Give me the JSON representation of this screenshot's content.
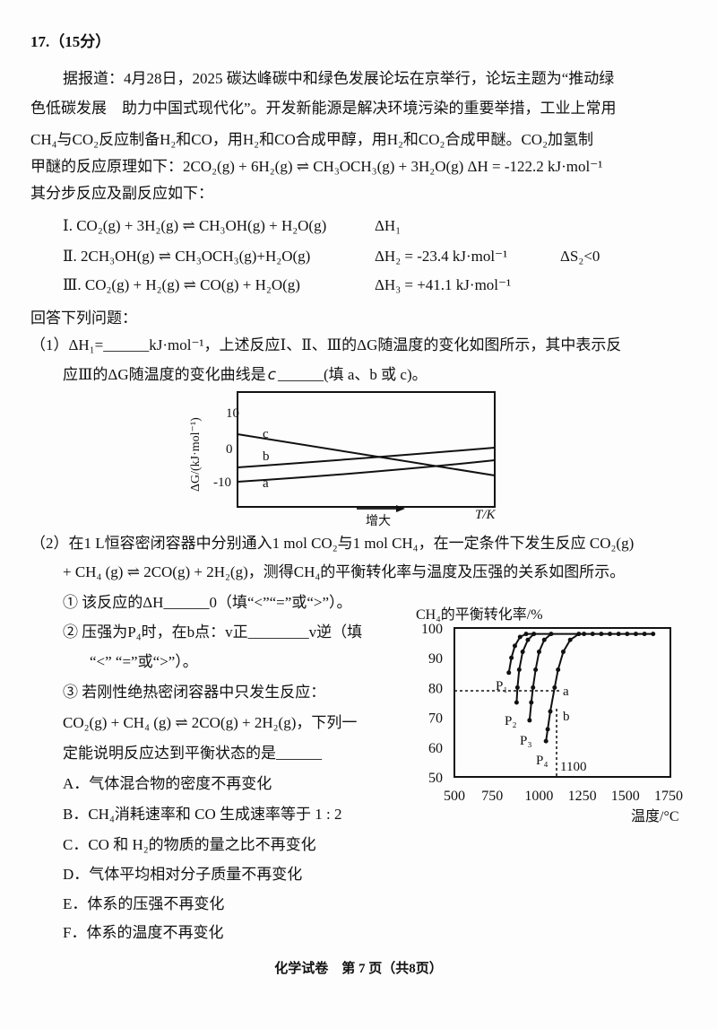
{
  "question": {
    "number": "17.（15分）",
    "intro": [
      "据报道：4月28日，2025 碳达峰碳中和绿色发展论坛在京举行，论坛主题为“推动绿",
      "色低碳发展　助力中国式现代化”。开发新能源是解决环境污染的重要举措，工业上常用",
      "CH₄与CO₂反应制备H₂和CO，用H₂和CO合成甲醇，用H₂和CO₂合成甲醚。CO₂加氢制",
      "甲醚的反应原理如下：2CO₂(g) + 6H₂(g) ⇌ CH₃OCH₃(g) + 3H₂O(g)  ΔH = -122.2 kJ·mol⁻¹",
      "其分步反应及副反应如下："
    ],
    "reactions": [
      {
        "eq": "Ⅰ. CO₂(g) + 3H₂(g) ⇌ CH₃OH(g) + H₂O(g)",
        "dh": "ΔH₁",
        "ds": ""
      },
      {
        "eq": "Ⅱ. 2CH₃OH(g) ⇌ CH₃OCH₃(g)+H₂O(g)",
        "dh": "ΔH₂ = -23.4 kJ·mol⁻¹",
        "ds": "ΔS₂<0"
      },
      {
        "eq": "Ⅲ. CO₂(g) + H₂(g) ⇌ CO(g) + H₂O(g)",
        "dh": "ΔH₃ = +41.1 kJ·mol⁻¹",
        "ds": ""
      }
    ],
    "answer_prompt": "回答下列问题：",
    "part1": {
      "line1": "（1）ΔH₁=______kJ·mol⁻¹，上述反应Ⅰ、Ⅱ、Ⅲ的ΔG随温度的变化如图所示，其中表示反",
      "line2_a": "应Ⅲ的ΔG随温度的变化曲线是",
      "handwritten_answer": "c",
      "line2_b": "______(填 a、b 或 c)。"
    },
    "figure1": {
      "ylabel": "ΔG/(kJ·mol⁻¹)",
      "yticks": [
        "10",
        "0",
        "-10"
      ],
      "curve_labels": [
        "c",
        "b",
        "a"
      ],
      "arrow_label": "增大",
      "xlabel": "T/K"
    },
    "part2": {
      "line1": "（2）在1 L恒容密闭容器中分别通入1 mol CO₂与1 mol CH₄，在一定条件下发生反应 CO₂(g)",
      "line2": "+ CH₄ (g) ⇌ 2CO(g) + 2H₂(g)，测得CH₄的平衡转化率与温度及压强的关系如图所示。",
      "q1": "① 该反应的ΔH______0（填“<”“=”或“>”）。",
      "q2a": "② 压强为P₄时，在b点：v正________v逆（填",
      "q2b": "“<” “=”或“>”）。",
      "q3a": "③ 若刚性绝热密闭容器中只发生反应：",
      "q3b": "CO₂(g) + CH₄ (g) ⇌ 2CO(g) + 2H₂(g)，下列一",
      "q3c": "定能说明反应达到平衡状态的是______",
      "options": [
        "A．气体混合物的密度不再变化",
        "B．CH₄消耗速率和 CO 生成速率等于 1 : 2",
        "C．CO 和 H₂的物质的量之比不再变化",
        "D．气体平均相对分子质量不再变化",
        "E．体系的压强不再变化",
        "F．体系的温度不再变化"
      ]
    },
    "figure2": {
      "title": "CH₄的平衡转化率/%",
      "xlabel": "温度/°C",
      "xticks": [
        "500",
        "750",
        "1000",
        "1250",
        "1500",
        "1750"
      ],
      "yticks": [
        "100",
        "90",
        "80",
        "70",
        "60",
        "50"
      ],
      "series_labels": [
        "P₁",
        "P₂",
        "P₃",
        "P₄"
      ],
      "point_labels": [
        "a",
        "b"
      ],
      "annotation": "1100"
    }
  },
  "footer": "化学试卷　第 7 页（共8页）"
}
